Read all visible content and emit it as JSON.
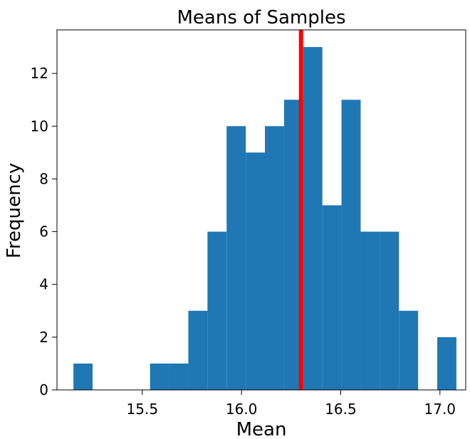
{
  "chart_data": {
    "type": "bar",
    "title": "Means of Samples",
    "xlabel": "Mean",
    "ylabel": "Frequency",
    "xlim": [
      15.07,
      17.13
    ],
    "ylim": [
      0,
      13.65
    ],
    "xticks": [
      15.5,
      16.0,
      16.5,
      17.0
    ],
    "xtick_labels": [
      "15.5",
      "16.0",
      "16.5",
      "17.0"
    ],
    "yticks": [
      0,
      2,
      4,
      6,
      8,
      10,
      12
    ],
    "ytick_labels": [
      "0",
      "2",
      "4",
      "6",
      "8",
      "10",
      "12"
    ],
    "bin_edges": [
      15.153,
      15.2495,
      15.346,
      15.4425,
      15.539,
      15.6355,
      15.732,
      15.8285,
      15.925,
      16.0215,
      16.118,
      16.2145,
      16.311,
      16.4075,
      16.504,
      16.6005,
      16.697,
      16.7935,
      16.89,
      16.9865,
      17.083
    ],
    "values": [
      1,
      0,
      0,
      0,
      1,
      1,
      3,
      6,
      10,
      9,
      10,
      11,
      13,
      7,
      11,
      6,
      6,
      3,
      0,
      2
    ],
    "bar_color": "#1f77b4",
    "reference_line": {
      "x": 16.3,
      "color": "#ff0000"
    },
    "grid": false,
    "legend": false
  }
}
